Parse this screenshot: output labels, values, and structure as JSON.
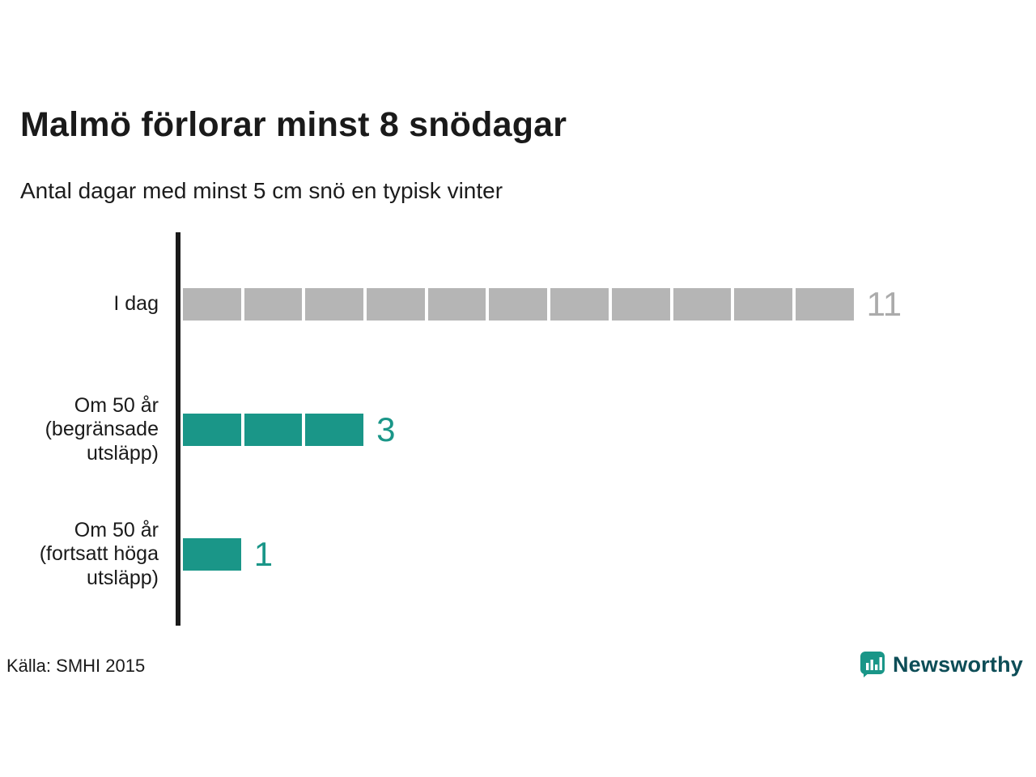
{
  "title": "Malmö förlorar minst 8 snödagar",
  "subtitle": "Antal dagar med minst 5 cm snö en typisk vinter",
  "source": "Källa: SMHI 2015",
  "brand": {
    "name": "Newsworthy",
    "icon": "bar-chart-marker-icon",
    "icon_color": "#1a9688",
    "text_color": "#0d4d57"
  },
  "colors": {
    "bar_gray": "#b5b5b5",
    "bar_teal": "#1a9688",
    "value_gray": "#ababab",
    "value_teal": "#1a9688",
    "axis": "#1a1a1a"
  },
  "chart_data": {
    "type": "bar",
    "orientation": "horizontal",
    "unit_segmented": true,
    "title": "Malmö förlorar minst 8 snödagar",
    "subtitle": "Antal dagar med minst 5 cm snö en typisk vinter",
    "xlabel": "",
    "ylabel": "",
    "xlim": [
      0,
      11
    ],
    "grid": false,
    "legend": "none",
    "categories": [
      "I dag",
      "Om 50 år (begränsade utsläpp)",
      "Om 50 år (fortsatt höga utsläpp)"
    ],
    "category_lines": [
      [
        "I dag"
      ],
      [
        "Om 50 år",
        "(begränsade",
        "utsläpp)"
      ],
      [
        "Om 50 år",
        "(fortsatt höga",
        "utsläpp)"
      ]
    ],
    "values": [
      11,
      3,
      1
    ],
    "bar_colors": [
      "#b5b5b5",
      "#1a9688",
      "#1a9688"
    ],
    "value_label_colors": [
      "#ababab",
      "#1a9688",
      "#1a9688"
    ]
  }
}
